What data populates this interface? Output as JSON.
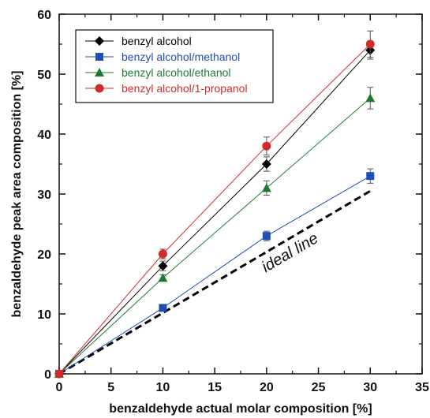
{
  "chart_data": {
    "type": "scatter",
    "xlabel": "benzaldehyde actual molar composition [%]",
    "ylabel": "benzaldehyde peak area composition [%]",
    "xlim": [
      0,
      35
    ],
    "ylim": [
      0,
      60
    ],
    "xticks": [
      "0",
      "5",
      "10",
      "15",
      "20",
      "25",
      "30",
      "35"
    ],
    "yticks": [
      "0",
      "10",
      "20",
      "30",
      "40",
      "50",
      "60"
    ],
    "grid": false,
    "legend_position": "top-left",
    "series": [
      {
        "name": "benzyl alcohol",
        "color": "#000000",
        "marker": "diamond",
        "x": [
          0,
          10,
          20,
          30
        ],
        "y": [
          0,
          18,
          35,
          54
        ],
        "err": [
          0,
          0.8,
          1.2,
          1.5
        ]
      },
      {
        "name": "benzyl alcohol/methanol",
        "color": "#1f4fb4",
        "marker": "square",
        "x": [
          0,
          10,
          20,
          30
        ],
        "y": [
          0,
          11,
          23,
          33
        ],
        "err": [
          0,
          0.5,
          0.8,
          1.2
        ]
      },
      {
        "name": "benzyl alcohol/ethanol",
        "color": "#1e7a32",
        "marker": "triangle",
        "x": [
          0,
          10,
          20,
          30
        ],
        "y": [
          0,
          16,
          31,
          46
        ],
        "err": [
          0,
          0.5,
          1.2,
          1.8
        ]
      },
      {
        "name": "benzyl alcohol/1-propanol",
        "color": "#d02c2c",
        "marker": "circle",
        "x": [
          0,
          10,
          20,
          30
        ],
        "y": [
          0,
          20,
          38,
          55
        ],
        "err": [
          0,
          0.8,
          1.5,
          2.2
        ]
      }
    ],
    "ideal_line": {
      "label": "ideal line",
      "x": [
        0,
        30
      ],
      "y": [
        0,
        30.5
      ]
    }
  }
}
